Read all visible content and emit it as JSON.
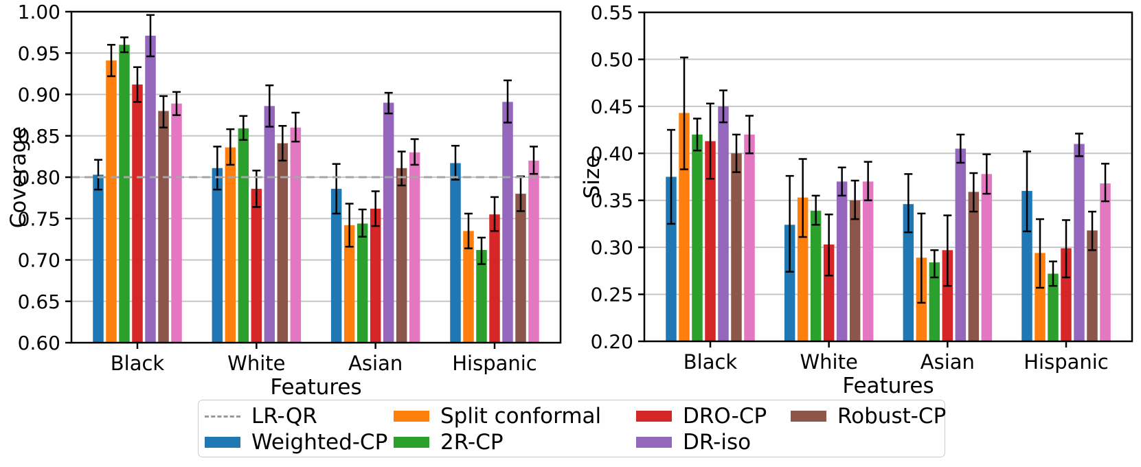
{
  "figure": {
    "background": "#ffffff",
    "grid_color": "#c6c6c6",
    "spine_color": "#000000",
    "errorbar_color": "#000000",
    "reference_line_color": "#a6a6a6"
  },
  "chart_data": [
    {
      "type": "bar",
      "title": "",
      "xlabel": "Features",
      "ylabel": "Coverage",
      "categories": [
        "Black",
        "White",
        "Asian",
        "Hispanic"
      ],
      "ylim": [
        0.6,
        1.0
      ],
      "yticks": [
        0.6,
        0.65,
        0.7,
        0.75,
        0.8,
        0.85,
        0.9,
        0.95,
        1.0
      ],
      "grid": true,
      "legend_position": "below-figure",
      "reference_line": {
        "label": "LR-QR",
        "value": 0.8,
        "style": "dashed"
      },
      "series": [
        {
          "name": "Weighted-CP",
          "color": "#1f77b4",
          "values": [
            0.803,
            0.811,
            0.786,
            0.817
          ],
          "err_lo": [
            0.785,
            0.785,
            0.756,
            0.797
          ],
          "err_hi": [
            0.821,
            0.837,
            0.816,
            0.838
          ]
        },
        {
          "name": "Split conformal",
          "color": "#ff7f0e",
          "values": [
            0.941,
            0.836,
            0.742,
            0.735
          ],
          "err_lo": [
            0.922,
            0.815,
            0.716,
            0.714
          ],
          "err_hi": [
            0.96,
            0.858,
            0.768,
            0.756
          ]
        },
        {
          "name": "2R-CP",
          "color": "#2ca02c",
          "values": [
            0.96,
            0.859,
            0.744,
            0.712
          ],
          "err_lo": [
            0.951,
            0.845,
            0.728,
            0.695
          ],
          "err_hi": [
            0.969,
            0.874,
            0.761,
            0.727
          ]
        },
        {
          "name": "DRO-CP",
          "color": "#d62728",
          "values": [
            0.912,
            0.786,
            0.762,
            0.755
          ],
          "err_lo": [
            0.891,
            0.764,
            0.741,
            0.735
          ],
          "err_hi": [
            0.933,
            0.808,
            0.783,
            0.776
          ]
        },
        {
          "name": "DR-iso",
          "color": "#9467bd",
          "values": [
            0.971,
            0.886,
            0.89,
            0.891
          ],
          "err_lo": [
            0.946,
            0.861,
            0.877,
            0.866
          ],
          "err_hi": [
            0.996,
            0.911,
            0.902,
            0.917
          ]
        },
        {
          "name": "Robust-CP",
          "color": "#8c564b",
          "values": [
            0.88,
            0.841,
            0.811,
            0.78
          ],
          "err_lo": [
            0.86,
            0.82,
            0.79,
            0.759
          ],
          "err_hi": [
            0.898,
            0.862,
            0.831,
            0.801
          ]
        },
        {
          "name": "",
          "color": "#e377c2",
          "values": [
            0.889,
            0.86,
            0.83,
            0.82
          ],
          "err_lo": [
            0.875,
            0.843,
            0.815,
            0.804
          ],
          "err_hi": [
            0.903,
            0.878,
            0.846,
            0.837
          ]
        }
      ]
    },
    {
      "type": "bar",
      "title": "",
      "xlabel": "Features",
      "ylabel": "Size",
      "categories": [
        "Black",
        "White",
        "Asian",
        "Hispanic"
      ],
      "ylim": [
        0.2,
        0.55
      ],
      "yticks": [
        0.2,
        0.25,
        0.3,
        0.35,
        0.4,
        0.45,
        0.5,
        0.55
      ],
      "grid": true,
      "legend_position": "below-figure",
      "reference_line": null,
      "series": [
        {
          "name": "Weighted-CP",
          "color": "#1f77b4",
          "values": [
            0.375,
            0.324,
            0.346,
            0.36
          ],
          "err_lo": [
            0.325,
            0.274,
            0.316,
            0.317
          ],
          "err_hi": [
            0.425,
            0.376,
            0.378,
            0.402
          ]
        },
        {
          "name": "Split conformal",
          "color": "#ff7f0e",
          "values": [
            0.443,
            0.353,
            0.289,
            0.294
          ],
          "err_lo": [
            0.383,
            0.311,
            0.241,
            0.257
          ],
          "err_hi": [
            0.502,
            0.394,
            0.336,
            0.33
          ]
        },
        {
          "name": "2R-CP",
          "color": "#2ca02c",
          "values": [
            0.42,
            0.339,
            0.284,
            0.272
          ],
          "err_lo": [
            0.403,
            0.324,
            0.268,
            0.259
          ],
          "err_hi": [
            0.437,
            0.355,
            0.297,
            0.285
          ]
        },
        {
          "name": "DRO-CP",
          "color": "#d62728",
          "values": [
            0.413,
            0.303,
            0.297,
            0.299
          ],
          "err_lo": [
            0.373,
            0.27,
            0.259,
            0.268
          ],
          "err_hi": [
            0.453,
            0.335,
            0.334,
            0.329
          ]
        },
        {
          "name": "DR-iso",
          "color": "#9467bd",
          "values": [
            0.45,
            0.37,
            0.405,
            0.41
          ],
          "err_lo": [
            0.433,
            0.355,
            0.39,
            0.397
          ],
          "err_hi": [
            0.467,
            0.385,
            0.42,
            0.421
          ]
        },
        {
          "name": "Robust-CP",
          "color": "#8c564b",
          "values": [
            0.4,
            0.35,
            0.359,
            0.318
          ],
          "err_lo": [
            0.38,
            0.33,
            0.338,
            0.297
          ],
          "err_hi": [
            0.42,
            0.371,
            0.379,
            0.338
          ]
        },
        {
          "name": "",
          "color": "#e377c2",
          "values": [
            0.42,
            0.37,
            0.378,
            0.368
          ],
          "err_lo": [
            0.4,
            0.35,
            0.357,
            0.349
          ],
          "err_hi": [
            0.44,
            0.391,
            0.399,
            0.389
          ]
        }
      ]
    }
  ],
  "legend": {
    "entries": [
      {
        "label": "LR-QR",
        "marker": "dashed-line",
        "color": "#999999"
      },
      {
        "label": "Weighted-CP",
        "marker": "swatch",
        "color": "#1f77b4"
      },
      {
        "label": "Split conformal",
        "marker": "swatch",
        "color": "#ff7f0e"
      },
      {
        "label": "2R-CP",
        "marker": "swatch",
        "color": "#2ca02c"
      },
      {
        "label": "DRO-CP",
        "marker": "swatch",
        "color": "#d62728"
      },
      {
        "label": "DR-iso",
        "marker": "swatch",
        "color": "#9467bd"
      },
      {
        "label": "Robust-CP",
        "marker": "swatch",
        "color": "#8c564b"
      }
    ]
  }
}
